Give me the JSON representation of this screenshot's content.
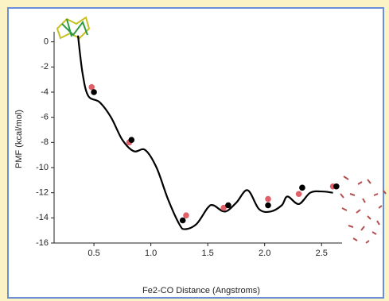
{
  "chart_data": {
    "type": "line",
    "xlabel": "Fe2-CO Distance (Angstroms)",
    "ylabel": "PMF (kcal/mol)",
    "xlim": [
      0.15,
      2.68
    ],
    "ylim": [
      -16,
      0.8
    ],
    "xticks": [
      0.5,
      {
        "value": 1,
        "label": "1.0"
      },
      1.5,
      {
        "value": 2,
        "label": "2.0"
      },
      2.5
    ],
    "yticks": [
      -16,
      -14,
      -12,
      -10,
      -8,
      -6,
      -4,
      -2,
      0
    ],
    "series": [
      {
        "style": "line",
        "color": "#000000",
        "x": [
          0.36,
          0.4,
          0.45,
          0.55,
          0.65,
          0.75,
          0.85,
          0.95,
          1.05,
          1.15,
          1.25,
          1.3,
          1.4,
          1.5,
          1.55,
          1.65,
          1.75,
          1.85,
          1.95,
          2.05,
          2.15,
          2.2,
          2.3,
          2.4,
          2.5,
          2.6
        ],
        "values": [
          0.5,
          -2.5,
          -4.3,
          -4.8,
          -6,
          -7.8,
          -8.7,
          -8.6,
          -10,
          -12.5,
          -14.5,
          -14.9,
          -14.5,
          -13.2,
          -13,
          -13.5,
          -12.8,
          -11.8,
          -13.3,
          -13.5,
          -13,
          -12.3,
          -12.9,
          -12,
          -11.9,
          -12
        ]
      },
      {
        "style": "markers",
        "color": "#e0606a",
        "x": [
          0.48,
          0.81,
          1.31,
          1.64,
          2.03,
          2.3,
          2.6
        ],
        "values": [
          -3.6,
          -8.0,
          -13.8,
          -13.2,
          -12.5,
          -12.1,
          -11.5
        ]
      },
      {
        "style": "markers",
        "color": "#000000",
        "x": [
          0.5,
          0.83,
          1.28,
          1.68,
          2.03,
          2.33,
          2.63
        ],
        "values": [
          -4,
          -7.8,
          -14.2,
          -13,
          -13,
          -11.6,
          -11.5
        ]
      }
    ]
  }
}
